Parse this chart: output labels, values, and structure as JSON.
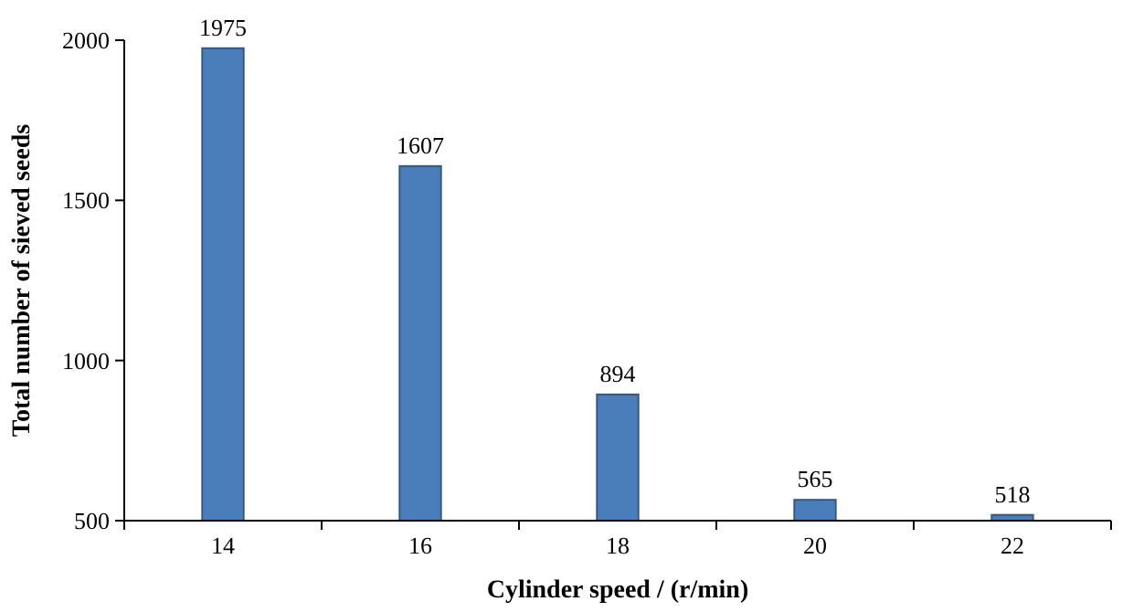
{
  "chart_data": {
    "type": "bar",
    "xlabel": "Cylinder speed / (r/min)",
    "ylabel": "Total number of sieved seeds",
    "categories": [
      "14",
      "16",
      "18",
      "20",
      "22"
    ],
    "values": [
      1975,
      1607,
      894,
      565,
      518
    ],
    "color": "#4a7ebb",
    "ylim": [
      500,
      2000
    ],
    "yticks": [
      500,
      1000,
      1500,
      2000
    ],
    "data_labels": true,
    "grid": false
  }
}
